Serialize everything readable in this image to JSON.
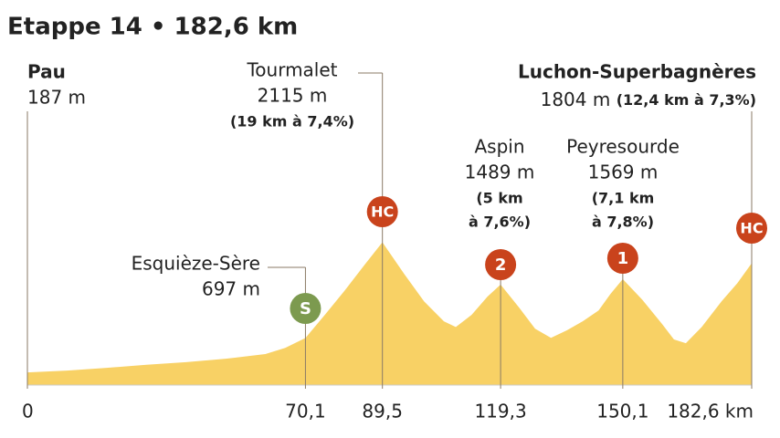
{
  "chart_data": {
    "type": "area",
    "title": "Etappe 14  • 182,6 km",
    "color": "#f8d165",
    "x": [
      0,
      10,
      20,
      30,
      40,
      50,
      60,
      65,
      70.1,
      75,
      80,
      85,
      89.5,
      95,
      100,
      105,
      108,
      112,
      116,
      119.3,
      124,
      128,
      132,
      136,
      140,
      144,
      147,
      150.1,
      155,
      160,
      163,
      166,
      170,
      175,
      179,
      182.6
    ],
    "values": [
      187,
      215,
      255,
      300,
      340,
      390,
      460,
      550,
      697,
      1040,
      1400,
      1780,
      2115,
      1645,
      1240,
      945,
      860,
      1040,
      1310,
      1489,
      1145,
      835,
      700,
      810,
      945,
      1105,
      1350,
      1569,
      1265,
      905,
      675,
      620,
      860,
      1240,
      1510,
      1804
    ],
    "xlim": [
      0,
      182.6
    ],
    "ylim": [
      0,
      2500
    ],
    "xticks": [
      0,
      {
        "value": 70.1,
        "label": "70,1"
      },
      {
        "value": 89.5,
        "label": "89,5"
      },
      {
        "value": 119.3,
        "label": "119,3"
      },
      {
        "value": 150.1,
        "label": "150,1"
      },
      {
        "value": 182.6,
        "label": "182,6 km"
      }
    ],
    "start": {
      "name": "Pau",
      "elevation": "187 m",
      "x": 0
    },
    "finish": {
      "name": "Luchon-Superbagnères",
      "elevation": "1804 m",
      "detail": "(12,4 km à 7,3%)",
      "badge": "HC",
      "x": 182.6
    },
    "climbs": [
      {
        "name": "Esquièze-Sère",
        "elevation": "697 m",
        "badge": "S",
        "x": 70.1
      },
      {
        "name": "Tourmalet",
        "elevation": "2115 m",
        "detail": [
          "(19 km à 7,4%)"
        ],
        "badge": "HC",
        "x": 89.5
      },
      {
        "name": "Aspin",
        "elevation": "1489 m",
        "detail": [
          "(5 km",
          "à 7,6%)"
        ],
        "badge": "2",
        "x": 119.3
      },
      {
        "name": "Peyresourde",
        "elevation": "1569 m",
        "detail": [
          "(7,1 km",
          "à 7,8%)"
        ],
        "badge": "1",
        "x": 150.1
      }
    ]
  }
}
